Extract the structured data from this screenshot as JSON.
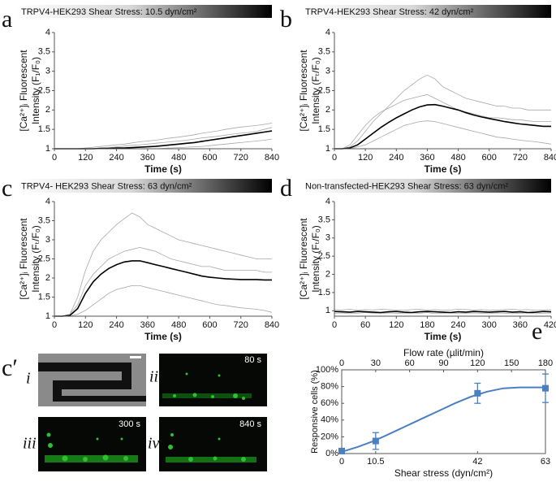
{
  "chart_data": [
    {
      "type": "line",
      "panel": "a",
      "title": "TRPV4-HEK293 Shear Stress: 10.5 dyn/cm²",
      "xlabel": "Time (s)",
      "ylabel": [
        "[Ca²⁺]ᵢ Fluorescent",
        "Intensity (F₁/F₀)"
      ],
      "x": [
        0,
        30,
        60,
        90,
        120,
        150,
        180,
        210,
        240,
        270,
        300,
        330,
        360,
        390,
        420,
        450,
        480,
        510,
        540,
        570,
        600,
        630,
        660,
        690,
        720,
        750,
        780,
        810,
        840
      ],
      "xlim": [
        0,
        840
      ],
      "xticks": [
        0,
        120,
        240,
        360,
        480,
        600,
        720,
        840
      ],
      "ylim": [
        1,
        4
      ],
      "yticks": [
        1,
        1.5,
        2,
        2.5,
        3,
        3.5,
        4
      ],
      "series": [
        {
          "color": "#a8a8a8",
          "values": [
            1,
            1,
            1,
            1,
            1.02,
            1.04,
            1.06,
            1.08,
            1.1,
            1.12,
            1.15,
            1.18,
            1.2,
            1.22,
            1.25,
            1.28,
            1.3,
            1.33,
            1.36,
            1.4,
            1.43,
            1.46,
            1.5,
            1.53,
            1.56,
            1.58,
            1.6,
            1.63,
            1.66
          ]
        },
        {
          "color": "#a8a8a8",
          "values": [
            1,
            1,
            1,
            1,
            1,
            1,
            1,
            1,
            1,
            1,
            1,
            1,
            1,
            1,
            1.01,
            1.02,
            1.03,
            1.04,
            1.05,
            1.06,
            1.08,
            1.1,
            1.12,
            1.14,
            1.16,
            1.18,
            1.2,
            1.22,
            1.25
          ]
        },
        {
          "color": "#a8a8a8",
          "values": [
            1,
            1,
            1,
            1,
            1,
            1.01,
            1.02,
            1.03,
            1.05,
            1.07,
            1.09,
            1.1,
            1.12,
            1.14,
            1.16,
            1.18,
            1.2,
            1.22,
            1.25,
            1.28,
            1.3,
            1.32,
            1.35,
            1.38,
            1.4,
            1.42,
            1.45,
            1.5,
            1.55
          ]
        },
        {
          "color": "#000000",
          "values": [
            1,
            1,
            1,
            1,
            1,
            1,
            1.01,
            1.01,
            1.02,
            1.02,
            1.03,
            1.04,
            1.05,
            1.06,
            1.08,
            1.1,
            1.12,
            1.14,
            1.16,
            1.19,
            1.22,
            1.25,
            1.28,
            1.31,
            1.34,
            1.37,
            1.4,
            1.43,
            1.46
          ]
        }
      ]
    },
    {
      "type": "line",
      "panel": "b",
      "title": "TRPV4-HEK293 Shear Stress: 42 dyn/cm²",
      "xlabel": "Time (s)",
      "ylabel": [
        "[Ca²⁺]ᵢ Fluorescent",
        "Intensity (Fₜ/F₀)"
      ],
      "x": [
        0,
        30,
        60,
        90,
        120,
        150,
        180,
        210,
        240,
        270,
        300,
        330,
        360,
        390,
        420,
        450,
        480,
        510,
        540,
        570,
        600,
        630,
        660,
        690,
        720,
        750,
        780,
        810,
        840
      ],
      "xlim": [
        0,
        840
      ],
      "xticks": [
        0,
        120,
        240,
        360,
        480,
        600,
        720,
        840
      ],
      "ylim": [
        1,
        4
      ],
      "yticks": [
        1,
        1.5,
        2,
        2.5,
        3,
        3.5,
        4
      ],
      "series": [
        {
          "color": "#a8a8a8",
          "values": [
            1,
            1,
            1.05,
            1.2,
            1.45,
            1.7,
            1.9,
            2.1,
            2.3,
            2.5,
            2.65,
            2.8,
            2.9,
            2.8,
            2.6,
            2.5,
            2.4,
            2.3,
            2.25,
            2.2,
            2.15,
            2.1,
            2.1,
            2.05,
            2.05,
            2.0,
            2.0,
            2.0,
            2.0
          ]
        },
        {
          "color": "#a8a8a8",
          "values": [
            1,
            1,
            1,
            1.05,
            1.1,
            1.2,
            1.3,
            1.4,
            1.5,
            1.6,
            1.65,
            1.7,
            1.72,
            1.7,
            1.65,
            1.6,
            1.55,
            1.5,
            1.45,
            1.4,
            1.35,
            1.3,
            1.28,
            1.25,
            1.22,
            1.2,
            1.18,
            1.15,
            1.12
          ]
        },
        {
          "color": "#a8a8a8",
          "values": [
            1,
            1,
            1.1,
            1.35,
            1.6,
            1.8,
            1.95,
            2.05,
            2.15,
            2.25,
            2.3,
            2.35,
            2.4,
            2.3,
            2.2,
            2.1,
            2.0,
            1.95,
            1.9,
            1.85,
            1.8,
            1.8,
            1.78,
            1.75,
            1.75,
            1.72,
            1.7,
            1.7,
            1.7
          ]
        },
        {
          "color": "#000000",
          "values": [
            1,
            1,
            1.02,
            1.1,
            1.25,
            1.4,
            1.55,
            1.68,
            1.8,
            1.9,
            2.0,
            2.08,
            2.13,
            2.14,
            2.1,
            2.05,
            2.0,
            1.93,
            1.87,
            1.82,
            1.78,
            1.74,
            1.7,
            1.67,
            1.64,
            1.62,
            1.6,
            1.58,
            1.58
          ]
        }
      ]
    },
    {
      "type": "line",
      "panel": "c",
      "title": "TRPV4- HEK293 Shear Stress: 63 dyn/cm²",
      "xlabel": "Time (s)",
      "ylabel": [
        "[Ca²⁺]ᵢ Fluorescent",
        "Intensity (Fₜ/F₀)"
      ],
      "x": [
        0,
        30,
        60,
        90,
        120,
        150,
        180,
        210,
        240,
        270,
        300,
        330,
        360,
        390,
        420,
        450,
        480,
        510,
        540,
        570,
        600,
        630,
        660,
        690,
        720,
        750,
        780,
        810,
        840
      ],
      "xlim": [
        0,
        840
      ],
      "xticks": [
        0,
        120,
        240,
        360,
        480,
        600,
        720,
        840
      ],
      "ylim": [
        1,
        4
      ],
      "yticks": [
        1,
        1.5,
        2,
        2.5,
        3,
        3.5,
        4
      ],
      "series": [
        {
          "color": "#a8a8a8",
          "values": [
            1,
            1,
            1.05,
            1.5,
            2.2,
            2.7,
            3.0,
            3.2,
            3.4,
            3.55,
            3.7,
            3.6,
            3.4,
            3.3,
            3.2,
            3.1,
            3.0,
            2.95,
            2.9,
            2.85,
            2.8,
            2.75,
            2.7,
            2.65,
            2.6,
            2.55,
            2.5,
            2.5,
            2.5
          ]
        },
        {
          "color": "#a8a8a8",
          "values": [
            1,
            1,
            1,
            1.05,
            1.15,
            1.3,
            1.45,
            1.6,
            1.7,
            1.75,
            1.8,
            1.8,
            1.75,
            1.7,
            1.65,
            1.6,
            1.55,
            1.5,
            1.45,
            1.4,
            1.35,
            1.3,
            1.28,
            1.25,
            1.22,
            1.2,
            1.18,
            1.15,
            1.1
          ]
        },
        {
          "color": "#a8a8a8",
          "values": [
            1,
            1,
            1.05,
            1.3,
            1.8,
            2.1,
            2.3,
            2.5,
            2.6,
            2.7,
            2.75,
            2.8,
            2.75,
            2.7,
            2.6,
            2.5,
            2.45,
            2.4,
            2.35,
            2.3,
            2.3,
            2.25,
            2.2,
            2.2,
            2.2,
            2.2,
            2.2,
            2.15,
            2.15
          ]
        },
        {
          "color": "#000000",
          "values": [
            1,
            1,
            1.02,
            1.2,
            1.6,
            1.9,
            2.1,
            2.25,
            2.35,
            2.42,
            2.45,
            2.45,
            2.4,
            2.35,
            2.3,
            2.25,
            2.2,
            2.15,
            2.1,
            2.05,
            2.02,
            2.0,
            1.98,
            1.97,
            1.96,
            1.96,
            1.96,
            1.95,
            1.95
          ]
        }
      ]
    },
    {
      "type": "line",
      "panel": "d",
      "title": "Non-transfected-HEK293 Shear Stress: 63 dyn/cm²",
      "xlabel": "Time (s)",
      "ylabel": [
        "[Ca²⁺]ᵢ Fluorescent",
        "Intensity (Fₜ/F₀)"
      ],
      "x": [
        0,
        15,
        30,
        45,
        60,
        75,
        90,
        105,
        120,
        135,
        150,
        165,
        180,
        195,
        210,
        225,
        240,
        255,
        270,
        285,
        300,
        315,
        330,
        345,
        360,
        375,
        390,
        405,
        420
      ],
      "xlim": [
        0,
        420
      ],
      "xticks": [
        0,
        60,
        120,
        180,
        240,
        300,
        360,
        420
      ],
      "ylim": [
        0.85,
        4
      ],
      "yticks": [
        1,
        1.5,
        2,
        2.5,
        3,
        3.5,
        4
      ],
      "series": [
        {
          "color": "#a8a8a8",
          "values": [
            1.03,
            1.02,
            1.04,
            1.01,
            1.03,
            1.02,
            1.04,
            1.03,
            1.02,
            1.01,
            1.03,
            1.04,
            1.02,
            1.03,
            1.01,
            1.02,
            1.04,
            1.03,
            1.02,
            1.03,
            1.01,
            1.02,
            1.03,
            1.04,
            1.02,
            1.03,
            1.01,
            1.02,
            1.03
          ]
        },
        {
          "color": "#a8a8a8",
          "values": [
            0.93,
            0.94,
            0.92,
            0.93,
            0.95,
            0.93,
            0.92,
            0.94,
            0.93,
            0.92,
            0.94,
            0.93,
            0.95,
            0.92,
            0.93,
            0.94,
            0.92,
            0.93,
            0.94,
            0.93,
            0.92,
            0.94,
            0.93,
            0.92,
            0.93,
            0.94,
            0.92,
            0.93,
            0.94
          ]
        },
        {
          "color": "#000000",
          "values": [
            0.98,
            0.97,
            0.96,
            0.98,
            0.97,
            0.96,
            0.95,
            0.97,
            0.98,
            0.96,
            0.95,
            0.97,
            0.98,
            0.97,
            0.96,
            0.95,
            0.97,
            0.96,
            0.98,
            0.97,
            0.96,
            0.97,
            0.98,
            0.96,
            0.97,
            0.95,
            0.96,
            0.98,
            0.97
          ]
        }
      ]
    },
    {
      "type": "errorbar",
      "panel": "e",
      "xlabel": "Shear stress (dyn/cm²)",
      "x2label": "Flow rate (µlit/min)",
      "ylabel": "Responsive cells (%)",
      "x": [
        0,
        10.5,
        42,
        63
      ],
      "values": [
        3,
        15,
        72,
        78
      ],
      "errors": [
        2,
        10,
        12,
        17
      ],
      "color": "#4a7fc1",
      "fit": {
        "x": [
          0,
          5,
          10,
          15,
          20,
          25,
          30,
          35,
          40,
          45,
          50,
          55,
          60,
          63
        ],
        "values": [
          2,
          8,
          15,
          24,
          33,
          42,
          51,
          60,
          68,
          74,
          78,
          79,
          79,
          79
        ],
        "color": "#4a7fc1"
      },
      "xlim": [
        0,
        63
      ],
      "xticks": [
        0,
        10.5,
        42,
        63
      ],
      "x2lim": [
        0,
        180
      ],
      "x2ticks": [
        0,
        30,
        60,
        90,
        120,
        150,
        180
      ],
      "ylim": [
        0,
        100
      ],
      "yticks": [
        {
          "value": 0,
          "label": "0%"
        },
        {
          "value": 20,
          "label": "20%"
        },
        {
          "value": 40,
          "label": "40%"
        },
        {
          "value": 60,
          "label": "60%"
        },
        {
          "value": 80,
          "label": "80%"
        },
        {
          "value": 100,
          "label": "100%"
        }
      ]
    }
  ],
  "images": {
    "label": "c′",
    "panels": [
      {
        "label": "i"
      },
      {
        "label": "ii",
        "time": "80 s"
      },
      {
        "label": "iii",
        "time": "300 s"
      },
      {
        "label": "iv",
        "time": "840 s"
      }
    ]
  }
}
